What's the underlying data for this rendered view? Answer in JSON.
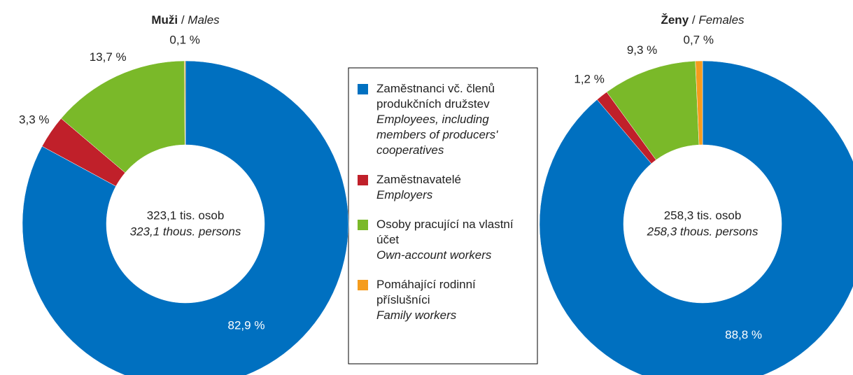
{
  "legend": {
    "items": [
      {
        "name": "Zaměstnanci vč. členů produkčních družstev",
        "name_en": "Employees, including members of producers' cooperatives",
        "color": "#0070c0"
      },
      {
        "name": "Zaměstnavatelé",
        "name_en": "Employers",
        "color": "#c0202a"
      },
      {
        "name": "Osoby pracující na vlastní účet",
        "name_en": "Own-account workers",
        "color": "#7ab929"
      },
      {
        "name": "Pomáhající rodinní příslušníci",
        "name_en": "Family workers",
        "color": "#f59c1d"
      }
    ]
  },
  "chart_data": [
    {
      "type": "donut",
      "title": "Muži",
      "title_sep": "/",
      "title_en": "Males",
      "center_label": "323,1 tis. osob",
      "center_label_en": "323,1 thous. persons",
      "values": [
        82.9,
        3.3,
        13.7,
        0.1
      ],
      "value_labels": [
        "82,9 %",
        "3,3 %",
        "13,7 %",
        "0,1 %"
      ]
    },
    {
      "type": "donut",
      "title": "Ženy",
      "title_sep": "/",
      "title_en": "Females",
      "center_label": "258,3 tis. osob",
      "center_label_en": "258,3 thous. persons",
      "values": [
        88.8,
        1.2,
        9.3,
        0.7
      ],
      "value_labels": [
        "88,8 %",
        "1,2 %",
        "9,3 %",
        "0,7 %"
      ]
    }
  ]
}
